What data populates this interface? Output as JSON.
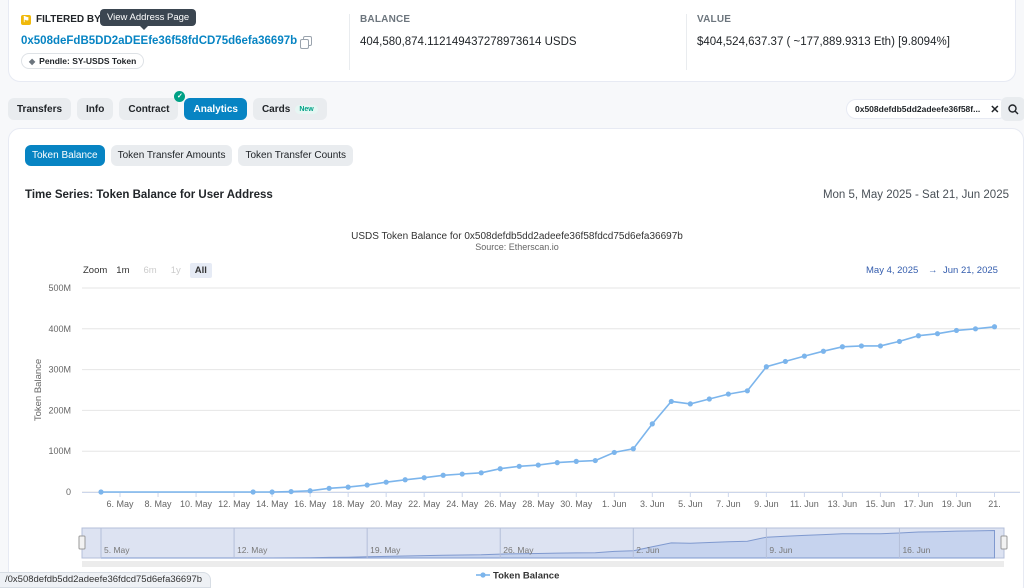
{
  "tooltip": "View Address Page",
  "header": {
    "filter_label": "FILTERED BY TOKEN HOLDER",
    "address": "0x508deFdB5DD2aDEEfe36f58fdCD75d6efa36697b",
    "tag": "Pendle: SY-USDS Token",
    "balance_label": "BALANCE",
    "balance_value": "404,580,874.112149437278973614 USDS",
    "value_label": "VALUE",
    "value_value": "$404,524,637.37 ( ~177,889.9313 Eth) [9.8094%]"
  },
  "tabs": [
    {
      "label": "Transfers"
    },
    {
      "label": "Info"
    },
    {
      "label": "Contract"
    },
    {
      "label": "Analytics"
    },
    {
      "label": "Cards",
      "badge": "New"
    }
  ],
  "filter_chip": "0x508defdb5dd2adeefe36f58f...",
  "subtabs": [
    "Token Balance",
    "Token Transfer Amounts",
    "Token Transfer Counts"
  ],
  "section_title": "Time Series: Token Balance for User Address",
  "date_range": "Mon 5, May 2025 - Sat 21, Jun 2025",
  "zoom": {
    "label": "Zoom",
    "buttons": [
      "1m",
      "6m",
      "1y",
      "All"
    ]
  },
  "range": {
    "from": "May 4, 2025",
    "arrow": "→",
    "to": "Jun 21, 2025"
  },
  "bottom_pill": "/0x508defdb5dd2adeefe36fdcd75d6efa36697b",
  "colors": {
    "accent": "#0784c3",
    "series": "#7cb5ec"
  },
  "chart_data": {
    "type": "line",
    "title": "USDS Token Balance for 0x508defdb5dd2adeefe36f58fdcd75d6efa36697b",
    "subtitle": "Source: Etherscan.io",
    "ylabel": "Token Balance",
    "ylim": [
      0,
      500
    ],
    "yticks": [
      "0",
      "100M",
      "200M",
      "300M",
      "400M",
      "500M"
    ],
    "xticks": [
      "6. May",
      "8. May",
      "10. May",
      "12. May",
      "14. May",
      "16. May",
      "18. May",
      "20. May",
      "22. May",
      "24. May",
      "26. May",
      "28. May",
      "30. May",
      "1. Jun",
      "3. Jun",
      "5. Jun",
      "7. Jun",
      "9. Jun",
      "11. Jun",
      "13. Jun",
      "15. Jun",
      "17. Jun",
      "19. Jun",
      "21."
    ],
    "navigator_labels": [
      "5. May",
      "12. May",
      "19. May",
      "26. May",
      "2. Jun",
      "9. Jun",
      "16. Jun"
    ],
    "legend": "Token Balance",
    "series": [
      {
        "name": "Token Balance",
        "points": [
          [
            "2025-05-05",
            0
          ],
          [
            "2025-05-13",
            0
          ],
          [
            "2025-05-14",
            0
          ],
          [
            "2025-05-15",
            1
          ],
          [
            "2025-05-16",
            3
          ],
          [
            "2025-05-17",
            9
          ],
          [
            "2025-05-18",
            12
          ],
          [
            "2025-05-19",
            17
          ],
          [
            "2025-05-20",
            24
          ],
          [
            "2025-05-21",
            30
          ],
          [
            "2025-05-22",
            35
          ],
          [
            "2025-05-23",
            41
          ],
          [
            "2025-05-24",
            44
          ],
          [
            "2025-05-25",
            47
          ],
          [
            "2025-05-26",
            57
          ],
          [
            "2025-05-27",
            63
          ],
          [
            "2025-05-28",
            66
          ],
          [
            "2025-05-29",
            72
          ],
          [
            "2025-05-30",
            75
          ],
          [
            "2025-05-31",
            77
          ],
          [
            "2025-06-01",
            97
          ],
          [
            "2025-06-02",
            106
          ],
          [
            "2025-06-03",
            167
          ],
          [
            "2025-06-04",
            222
          ],
          [
            "2025-06-05",
            216
          ],
          [
            "2025-06-06",
            228
          ],
          [
            "2025-06-07",
            240
          ],
          [
            "2025-06-08",
            248
          ],
          [
            "2025-06-09",
            307
          ],
          [
            "2025-06-10",
            320
          ],
          [
            "2025-06-11",
            333
          ],
          [
            "2025-06-12",
            345
          ],
          [
            "2025-06-13",
            356
          ],
          [
            "2025-06-14",
            358
          ],
          [
            "2025-06-15",
            358
          ],
          [
            "2025-06-16",
            369
          ],
          [
            "2025-06-17",
            383
          ],
          [
            "2025-06-18",
            388
          ],
          [
            "2025-06-19",
            396
          ],
          [
            "2025-06-20",
            400
          ],
          [
            "2025-06-21",
            405
          ]
        ]
      }
    ]
  }
}
